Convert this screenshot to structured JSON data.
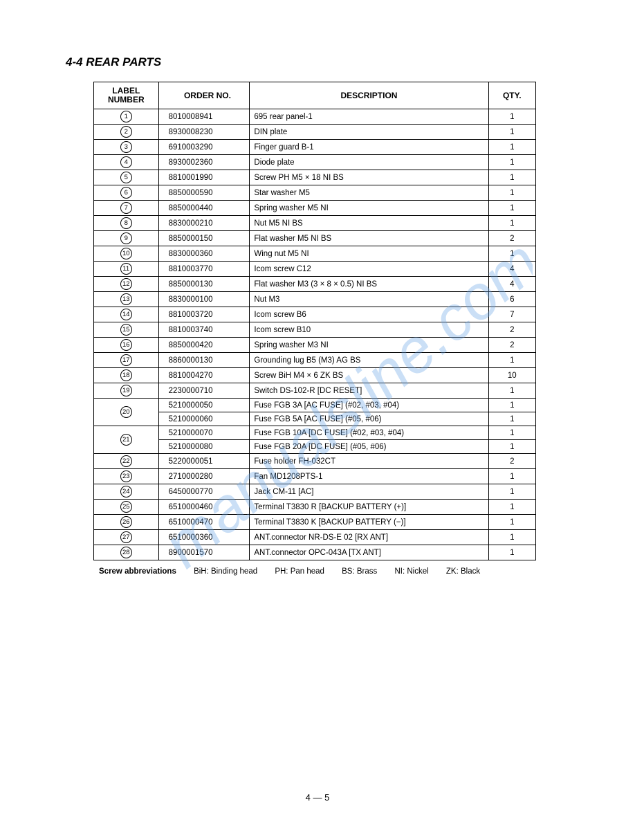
{
  "heading": "4-4 REAR PARTS",
  "table": {
    "headers": {
      "label": "LABEL\nNUMBER",
      "order": "ORDER NO.",
      "desc": "DESCRIPTION",
      "qty": "QTY."
    },
    "rows": [
      {
        "label": "1",
        "order": "8010008941",
        "desc": "695 rear panel-1",
        "qty": "1"
      },
      {
        "label": "2",
        "order": "8930008230",
        "desc": "DIN plate",
        "qty": "1"
      },
      {
        "label": "3",
        "order": "6910003290",
        "desc": "Finger guard B-1",
        "qty": "1"
      },
      {
        "label": "4",
        "order": "8930002360",
        "desc": "Diode plate",
        "qty": "1"
      },
      {
        "label": "5",
        "order": "8810001990",
        "desc": "Screw PH M5 × 18 NI BS",
        "qty": "1"
      },
      {
        "label": "6",
        "order": "8850000590",
        "desc": "Star washer M5",
        "qty": "1"
      },
      {
        "label": "7",
        "order": "8850000440",
        "desc": "Spring washer M5 NI",
        "qty": "1"
      },
      {
        "label": "8",
        "order": "8830000210",
        "desc": "Nut M5 NI BS",
        "qty": "1"
      },
      {
        "label": "9",
        "order": "8850000150",
        "desc": "Flat washer M5 NI BS",
        "qty": "2"
      },
      {
        "label": "10",
        "order": "8830000360",
        "desc": "Wing nut M5 NI",
        "qty": "1"
      },
      {
        "label": "11",
        "order": "8810003770",
        "desc": "Icom screw C12",
        "qty": "4"
      },
      {
        "label": "12",
        "order": "8850000130",
        "desc": "Flat washer M3 (3 × 8 × 0.5) NI BS",
        "qty": "4"
      },
      {
        "label": "13",
        "order": "8830000100",
        "desc": "Nut M3",
        "qty": "6"
      },
      {
        "label": "14",
        "order": "8810003720",
        "desc": "Icom screw B6",
        "qty": "7"
      },
      {
        "label": "15",
        "order": "8810003740",
        "desc": "Icom screw B10",
        "qty": "2"
      },
      {
        "label": "16",
        "order": "8850000420",
        "desc": "Spring washer M3 NI",
        "qty": "2"
      },
      {
        "label": "17",
        "order": "8860000130",
        "desc": "Grounding lug B5 (M3) AG BS",
        "qty": "1"
      },
      {
        "label": "18",
        "order": "8810004270",
        "desc": "Screw BiH M4 × 6 ZK   BS",
        "qty": "10"
      },
      {
        "label": "19",
        "order": "2230000710",
        "desc": "Switch DS-102-R [DC RESET]",
        "qty": "1"
      },
      {
        "label": "20",
        "rowspan": 2,
        "order": "5210000050",
        "desc": "Fuse FGB 3A [AC FUSE] (#02, #03, #04)",
        "qty": "1"
      },
      {
        "label": null,
        "order": "5210000060",
        "desc": "Fuse FGB 5A [AC FUSE] (#05, #06)",
        "qty": "1"
      },
      {
        "label": "21",
        "rowspan": 2,
        "order": "5210000070",
        "desc": "Fuse FGB 10A [DC FUSE] (#02, #03, #04)",
        "qty": "1"
      },
      {
        "label": null,
        "order": "5210000080",
        "desc": "Fuse FGB 20A [DC FUSE] (#05, #06)",
        "qty": "1"
      },
      {
        "label": "22",
        "order": "5220000051",
        "desc": "Fuse holder FH-032CT",
        "qty": "2"
      },
      {
        "label": "23",
        "order": "2710000280",
        "desc": "Fan MD1208PTS-1",
        "qty": "1"
      },
      {
        "label": "24",
        "order": "6450000770",
        "desc": "Jack CM-11 [AC]",
        "qty": "1"
      },
      {
        "label": "25",
        "order": "6510000460",
        "desc": "Terminal T3830 R [BACKUP BATTERY (+)]",
        "qty": "1"
      },
      {
        "label": "26",
        "order": "6510000470",
        "desc": "Terminal T3830 K [BACKUP BATTERY (−)]",
        "qty": "1"
      },
      {
        "label": "27",
        "order": "6510000360",
        "desc": "ANT.connector NR-DS-E 02 [RX ANT]",
        "qty": "1"
      },
      {
        "label": "28",
        "order": "8900001570",
        "desc": "ANT.connector OPC-043A [TX ANT]",
        "qty": "1"
      }
    ]
  },
  "abbreviations": {
    "title": "Screw abbreviations",
    "items": [
      "BiH: Binding head",
      "PH: Pan head",
      "BS: Brass",
      "NI: Nickel",
      "ZK: Black"
    ]
  },
  "page_number": "4 — 5",
  "watermark_text": "manualsline.com",
  "colors": {
    "text": "#000000",
    "background": "#ffffff",
    "watermark": "#6aa6e6",
    "border": "#000000"
  },
  "fonts": {
    "body_size_pt": 11.5,
    "heading_size_pt": 17,
    "heading_weight": "bold",
    "heading_style": "italic"
  }
}
